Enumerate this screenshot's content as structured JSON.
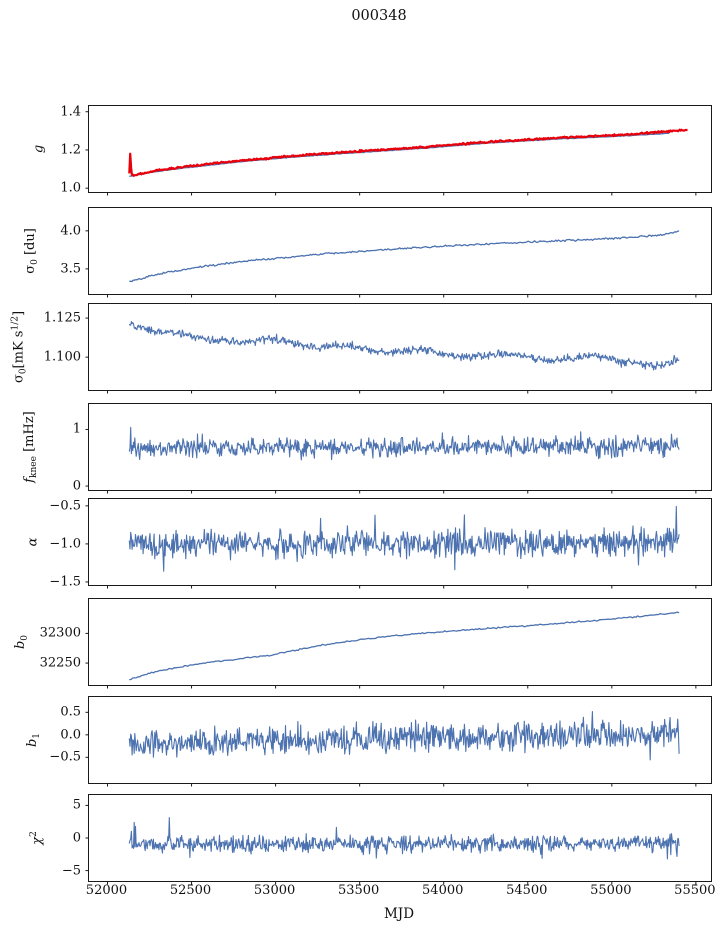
{
  "title": "000348",
  "chart_data": {
    "type": "line",
    "title": "000348",
    "xlabel": "MJD",
    "xlim": [
      51890,
      55590
    ],
    "xticks": [
      {
        "v": 52000,
        "l": "52000"
      },
      {
        "v": 52500,
        "l": "52500"
      },
      {
        "v": 53000,
        "l": "53000"
      },
      {
        "v": 53500,
        "l": "53500"
      },
      {
        "v": 54000,
        "l": "54000"
      },
      {
        "v": 54500,
        "l": "54500"
      },
      {
        "v": 55000,
        "l": "55000"
      },
      {
        "v": 55500,
        "l": "55500"
      }
    ],
    "grid": false,
    "legend": "none",
    "panels": [
      {
        "id": "g",
        "ylabel_text": "g",
        "ylabel_segments": [
          [
            "g",
            "it"
          ]
        ],
        "ylim": [
          0.98,
          1.43
        ],
        "yticks": [
          {
            "v": 1.0,
            "l": "1.0"
          },
          {
            "v": 1.2,
            "l": "1.2"
          },
          {
            "v": 1.4,
            "l": "1.4"
          }
        ],
        "series": [
          {
            "name": "gain-fit-blue",
            "color": "#4c72b0",
            "width": 1.3,
            "n_points": 280,
            "seed": 7,
            "noise_std": 0.0008,
            "spikes": false,
            "trend_x": [
              52130,
              52300,
              52500,
              52700,
              52900,
              53100,
              53300,
              53500,
              53700,
              53900,
              54100,
              54300,
              54500,
              54700,
              54900,
              55100,
              55250,
              55340
            ],
            "trend_y": [
              1.062,
              1.088,
              1.11,
              1.13,
              1.147,
              1.162,
              1.175,
              1.187,
              1.198,
              1.21,
              1.225,
              1.238,
              1.248,
              1.258,
              1.266,
              1.275,
              1.282,
              1.287
            ]
          },
          {
            "name": "gain-data-red",
            "color": "#e8000b",
            "width": 2.2,
            "n_points": 650,
            "seed": 13,
            "noise_std": 0.0022,
            "spikes": false,
            "trend_x": [
              52130,
              52136,
              52142,
              52160,
              52300,
              52500,
              52700,
              52900,
              53100,
              53300,
              53500,
              53700,
              53900,
              54100,
              54300,
              54500,
              54700,
              54900,
              55100,
              55250,
              55340,
              55450
            ],
            "trend_y": [
              1.08,
              1.2,
              1.07,
              1.068,
              1.094,
              1.116,
              1.136,
              1.153,
              1.168,
              1.181,
              1.193,
              1.204,
              1.216,
              1.231,
              1.244,
              1.254,
              1.264,
              1.272,
              1.281,
              1.292,
              1.298,
              1.304
            ]
          }
        ]
      },
      {
        "id": "sigma0-du",
        "ylabel_text": "σ0 [du]",
        "ylabel_segments": [
          [
            "σ",
            "n"
          ],
          [
            "0",
            "sub"
          ],
          [
            " [du]",
            "n"
          ]
        ],
        "ylim": [
          3.17,
          4.3
        ],
        "yticks": [
          {
            "v": 3.5,
            "l": "3.5"
          },
          {
            "v": 4.0,
            "l": "4.0"
          }
        ],
        "series": [
          {
            "name": "sigma0-du",
            "color": "#4c72b0",
            "width": 1.3,
            "n_points": 420,
            "seed": 21,
            "noise_std": 0.006,
            "spikes": false,
            "trend_x": [
              52130,
              52300,
              52500,
              52700,
              52900,
              53100,
              53300,
              53600,
              53900,
              54200,
              54500,
              54800,
              55000,
              55150,
              55300,
              55400
            ],
            "trend_y": [
              3.33,
              3.43,
              3.51,
              3.57,
              3.62,
              3.66,
              3.7,
              3.745,
              3.785,
              3.82,
              3.85,
              3.88,
              3.9,
              3.92,
              3.95,
              3.99
            ]
          }
        ]
      },
      {
        "id": "sigma0-mK",
        "ylabel_text": "σ0[mK s1/2]",
        "ylabel_segments": [
          [
            "σ",
            "n"
          ],
          [
            "0",
            "sub"
          ],
          [
            "[mK s",
            "n"
          ],
          [
            "1/2",
            "sup"
          ],
          [
            "]",
            "n"
          ]
        ],
        "ylim": [
          1.079,
          1.134
        ],
        "yticks": [
          {
            "v": 1.1,
            "l": "1.100"
          },
          {
            "v": 1.125,
            "l": "1.125"
          }
        ],
        "series": [
          {
            "name": "sigma0-mK",
            "color": "#4c72b0",
            "width": 1.1,
            "n_points": 800,
            "seed": 31,
            "noise_std": 0.0013,
            "spikes": false,
            "trend_x": [
              52130,
              52250,
              52400,
              52550,
              52700,
              52850,
              53000,
              53100,
              53250,
              53400,
              53550,
              53700,
              53850,
              54000,
              54150,
              54300,
              54450,
              54600,
              54750,
              54900,
              55050,
              55150,
              55250,
              55350,
              55400
            ],
            "trend_y": [
              1.121,
              1.117,
              1.116,
              1.112,
              1.11,
              1.1095,
              1.112,
              1.109,
              1.106,
              1.108,
              1.105,
              1.103,
              1.105,
              1.102,
              1.1,
              1.102,
              1.1015,
              1.098,
              1.099,
              1.101,
              1.097,
              1.0965,
              1.094,
              1.097,
              1.099
            ]
          }
        ]
      },
      {
        "id": "fknee",
        "ylabel_text": "fknee [mHz]",
        "ylabel_segments": [
          [
            "f",
            "it"
          ],
          [
            "knee",
            "sub"
          ],
          [
            " [mHz]",
            "n"
          ]
        ],
        "ylim": [
          -0.07,
          1.45
        ],
        "yticks": [
          {
            "v": 0,
            "l": "0"
          },
          {
            "v": 1,
            "l": "1"
          }
        ],
        "series": [
          {
            "name": "fknee",
            "color": "#4c72b0",
            "width": 1.1,
            "n_points": 800,
            "seed": 41,
            "noise_std": 0.085,
            "spikes": true,
            "trend_x": [
              52130,
              55400
            ],
            "trend_y": [
              0.67,
              0.7
            ]
          }
        ]
      },
      {
        "id": "alpha",
        "ylabel_text": "α",
        "ylabel_segments": [
          [
            "α",
            "it"
          ]
        ],
        "ylim": [
          -1.54,
          -0.41
        ],
        "yticks": [
          {
            "v": -0.5,
            "l": "−0.5"
          },
          {
            "v": -1.0,
            "l": "−1.0"
          },
          {
            "v": -1.5,
            "l": "−1.5"
          }
        ],
        "series": [
          {
            "name": "alpha",
            "color": "#4c72b0",
            "width": 1.1,
            "n_points": 800,
            "seed": 51,
            "noise_std": 0.09,
            "spikes": true,
            "trend_x": [
              52130,
              55400
            ],
            "trend_y": [
              -1.0,
              -0.99
            ]
          }
        ]
      },
      {
        "id": "b0",
        "ylabel_text": "b0",
        "ylabel_segments": [
          [
            "b",
            "it"
          ],
          [
            "0",
            "sub"
          ]
        ],
        "ylim": [
          32213,
          32358
        ],
        "yticks": [
          {
            "v": 32250,
            "l": "32250"
          },
          {
            "v": 32300,
            "l": "32300"
          }
        ],
        "series": [
          {
            "name": "b0",
            "color": "#4c72b0",
            "width": 1.3,
            "n_points": 320,
            "seed": 61,
            "noise_std": 0.6,
            "spikes": false,
            "trend_x": [
              52130,
              52250,
              52400,
              52600,
              52800,
              52950,
              53100,
              53300,
              53500,
              53700,
              53900,
              54100,
              54300,
              54500,
              54700,
              54900,
              55100,
              55250,
              55400
            ],
            "trend_y": [
              32222,
              32233,
              32242,
              32251,
              32258,
              32262,
              32271,
              32281,
              32289,
              32296,
              32301,
              32305,
              32309,
              32313,
              32317,
              32322,
              32327,
              32331,
              32336
            ]
          }
        ]
      },
      {
        "id": "b1",
        "ylabel_text": "b1",
        "ylabel_segments": [
          [
            "b",
            "it"
          ],
          [
            "1",
            "sub"
          ]
        ],
        "ylim": [
          -1.07,
          0.84
        ],
        "yticks": [
          {
            "v": 0.5,
            "l": "0.5"
          },
          {
            "v": 0.0,
            "l": "0.0"
          },
          {
            "v": -0.5,
            "l": "−0.5"
          }
        ],
        "series": [
          {
            "name": "b1",
            "color": "#4c72b0",
            "width": 1.1,
            "n_points": 800,
            "seed": 71,
            "noise_std": 0.155,
            "spikes": true,
            "trend_x": [
              52130,
              53000,
              54000,
              54700,
              55400
            ],
            "trend_y": [
              -0.22,
              -0.13,
              -0.04,
              -0.02,
              0.0
            ]
          }
        ]
      },
      {
        "id": "chi2",
        "ylabel_text": "χ2",
        "ylabel_segments": [
          [
            "χ",
            "it"
          ],
          [
            "2",
            "sup"
          ]
        ],
        "ylim": [
          -6.6,
          6.6
        ],
        "yticks": [
          {
            "v": 5,
            "l": "5"
          },
          {
            "v": 0,
            "l": "0"
          },
          {
            "v": -5,
            "l": "−5"
          }
        ],
        "series": [
          {
            "name": "chi2",
            "color": "#4c72b0",
            "width": 1.1,
            "n_points": 800,
            "seed": 81,
            "noise_std": 0.62,
            "spikes": true,
            "trend_x": [
              52130,
              55400
            ],
            "trend_y": [
              -1.0,
              -0.8
            ]
          }
        ]
      }
    ]
  }
}
